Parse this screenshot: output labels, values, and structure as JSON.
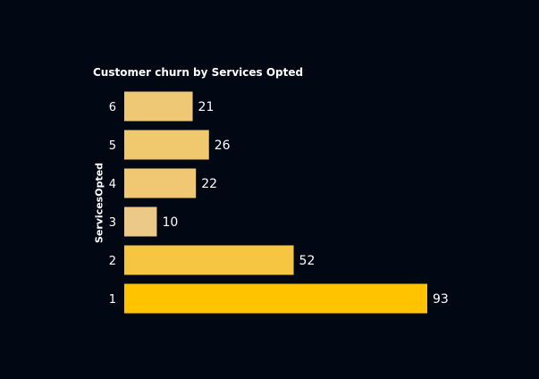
{
  "chart_data": {
    "type": "bar",
    "orientation": "horizontal",
    "title": "Customer churn by Services Opted",
    "xlabel": "",
    "ylabel": "ServicesOpted",
    "categories": [
      "1",
      "2",
      "3",
      "4",
      "5",
      "6"
    ],
    "values": [
      93,
      52,
      10,
      22,
      26,
      21
    ],
    "data_labels": true,
    "xlim": [
      0,
      93
    ],
    "grid": false,
    "legend": "none",
    "colors": {
      "background": "#010814",
      "text": "#ffffff",
      "bar_min": "#EDC987",
      "bar_max": "#FFC300"
    }
  }
}
